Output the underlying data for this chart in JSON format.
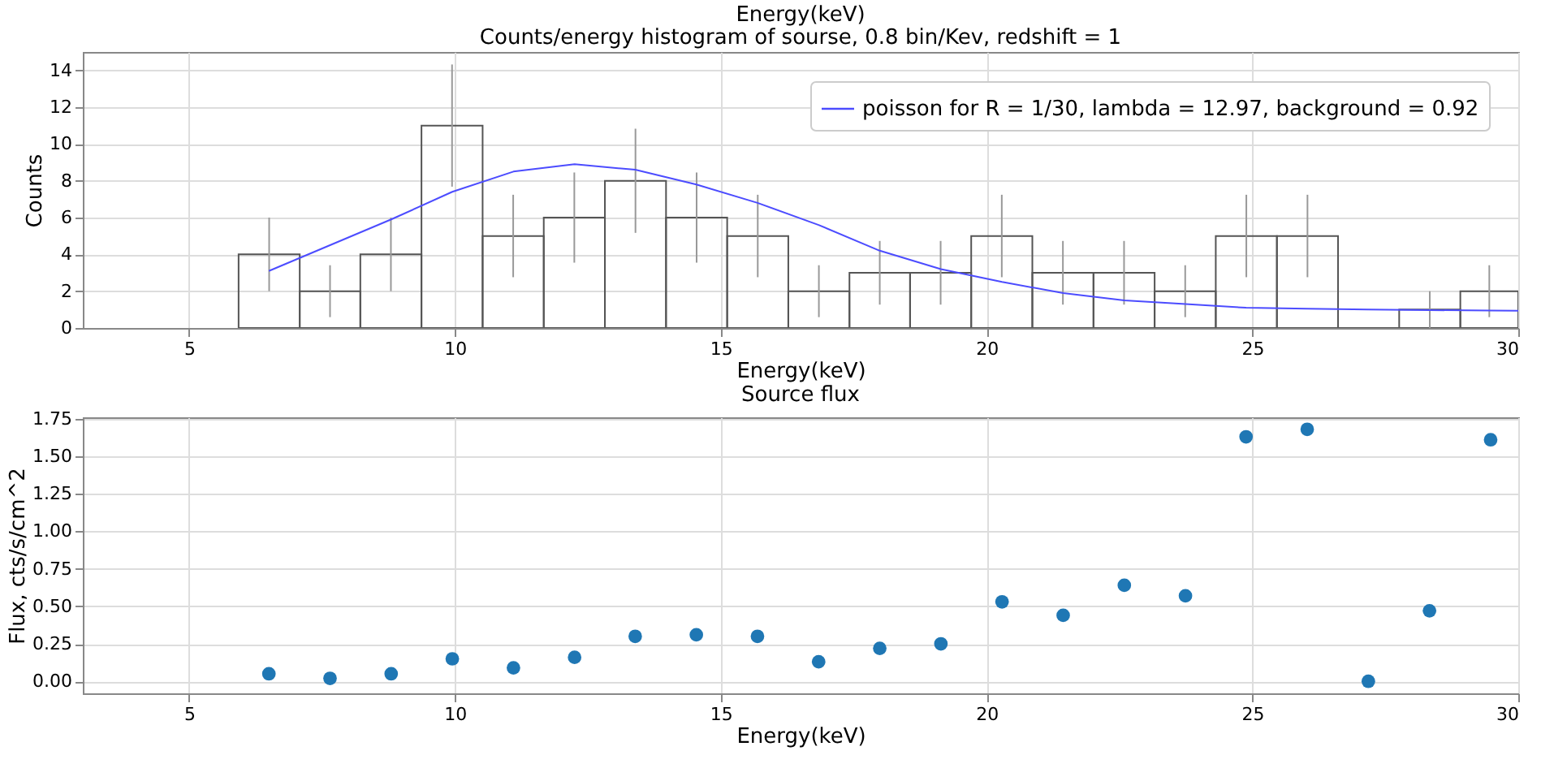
{
  "chart_data": [
    {
      "type": "histogram",
      "title": "Energy(keV)",
      "subtitle": "Counts/energy histogram of sourse, 0.8 bin/Kev, redshift = 1",
      "xlabel": "Energy(keV)",
      "ylabel": "Counts",
      "bins": [
        5.93,
        7.08,
        8.22,
        9.37,
        10.52,
        11.67,
        12.82,
        13.97,
        15.12,
        16.27,
        17.42,
        18.56,
        19.71,
        20.86,
        22.01,
        23.16,
        24.31,
        25.46,
        26.61,
        27.76,
        28.91,
        30
      ],
      "values": [
        4,
        2,
        4,
        11,
        5,
        6,
        8,
        6,
        5,
        2,
        3,
        3,
        5,
        3,
        3,
        2,
        5,
        5,
        0,
        1,
        2
      ],
      "errors": [
        2,
        1.41,
        2,
        3.32,
        2.24,
        2.45,
        2.83,
        2.45,
        2.24,
        1.41,
        1.73,
        1.73,
        2.24,
        1.73,
        1.73,
        1.41,
        2.24,
        2.24,
        0,
        1,
        1.41
      ],
      "color": "#555555",
      "series": [
        {
          "type": "line",
          "name": "poisson for R = 1/30, lambda = 12.97, background = 0.92",
          "color": "#4c4cff",
          "x": [
            6.5,
            7.65,
            8.8,
            9.95,
            11.1,
            12.25,
            13.39,
            14.54,
            15.69,
            16.84,
            17.99,
            19.14,
            20.29,
            21.44,
            22.59,
            23.74,
            24.88,
            26.03,
            27.18,
            28.33,
            29.48,
            30
          ],
          "values": [
            3.1,
            4.5,
            5.9,
            7.4,
            8.5,
            8.9,
            8.6,
            7.8,
            6.8,
            5.6,
            4.2,
            3.2,
            2.5,
            1.9,
            1.5,
            1.3,
            1.1,
            1.05,
            1.0,
            0.97,
            0.95,
            0.94
          ]
        }
      ],
      "xlim": [
        3,
        30
      ],
      "xticks": [
        5,
        10,
        15,
        20,
        25,
        30
      ],
      "ylim": [
        0,
        15
      ],
      "yticks": [
        0,
        2,
        4,
        6,
        8,
        10,
        12,
        14
      ],
      "grid": true,
      "legend": "top right"
    },
    {
      "type": "scatter",
      "title": "Source flux",
      "xlabel": "Energy(keV)",
      "ylabel": "Flux, cts/s/cm^2",
      "x": [
        6.5,
        7.65,
        8.8,
        9.95,
        11.1,
        12.25,
        13.39,
        14.54,
        15.69,
        16.84,
        17.99,
        19.14,
        20.29,
        21.44,
        22.59,
        23.74,
        24.88,
        26.03,
        27.18,
        28.33,
        29.48
      ],
      "values": [
        0.05,
        0.02,
        0.05,
        0.15,
        0.09,
        0.16,
        0.3,
        0.31,
        0.3,
        0.13,
        0.22,
        0.25,
        0.53,
        0.44,
        0.64,
        0.57,
        1.63,
        1.68,
        0.0,
        0.47,
        1.61
      ],
      "color": "#1f77b4",
      "marker": "circle",
      "xlim": [
        3,
        30
      ],
      "xticks": [
        5,
        10,
        15,
        20,
        25,
        30
      ],
      "ylim": [
        -0.08,
        1.76
      ],
      "yticks": [
        {
          "value": 0,
          "label": "0.00"
        },
        {
          "value": 0.25,
          "label": "0.25"
        },
        {
          "value": 0.5,
          "label": "0.50"
        },
        {
          "value": 0.75,
          "label": "0.75"
        },
        {
          "value": 1,
          "label": "1.00"
        },
        {
          "value": 1.25,
          "label": "1.25"
        },
        {
          "value": 1.5,
          "label": "1.50"
        },
        {
          "value": 1.75,
          "label": "1.75"
        }
      ],
      "grid": true
    }
  ]
}
